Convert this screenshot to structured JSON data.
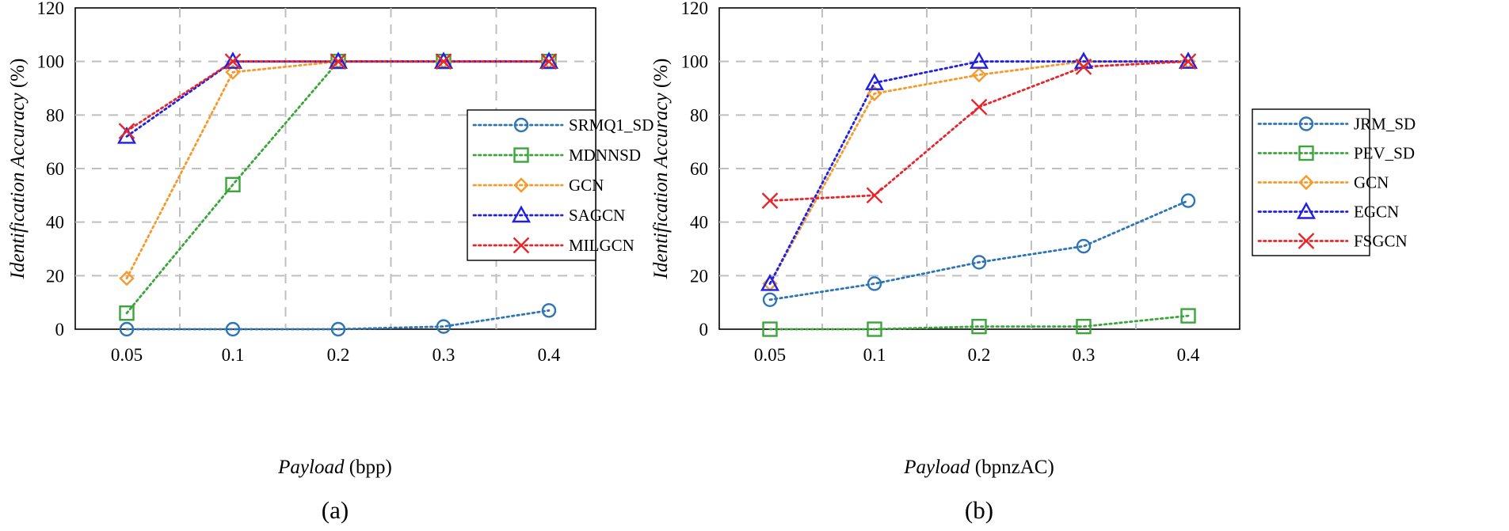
{
  "colors": {
    "blue": "#2E75B6",
    "green": "#3AA63A",
    "orange": "#F59A2B",
    "darkblue": "#1F1FE6",
    "red": "#E8252A",
    "grid": "#BFBFBF"
  },
  "chart_data": [
    {
      "type": "line",
      "subtitle": "(a)",
      "xlabel_italic": "Payload",
      "xlabel_unit": "(bpp)",
      "ylabel": "Identification Accuracy (%)",
      "categories": [
        "0.05",
        "0.1",
        "0.2",
        "0.3",
        "0.4"
      ],
      "ylim": [
        0,
        120
      ],
      "yticks": [
        "0",
        "20",
        "40",
        "60",
        "80",
        "100",
        "120"
      ],
      "grid": true,
      "legend_position": "right",
      "series": [
        {
          "name": "SRMQ1_SD",
          "marker": "circle",
          "color": "#2E75B6",
          "values": [
            0,
            0,
            0,
            1,
            7
          ]
        },
        {
          "name": "MDNNSD",
          "marker": "square",
          "color": "#3AA63A",
          "values": [
            6,
            54,
            100,
            100,
            100
          ]
        },
        {
          "name": "GCN",
          "marker": "diamond",
          "color": "#F59A2B",
          "values": [
            19,
            96,
            100,
            100,
            100
          ]
        },
        {
          "name": "SAGCN",
          "marker": "triangle",
          "color": "#1F1FE6",
          "values": [
            72,
            100,
            100,
            100,
            100
          ]
        },
        {
          "name": "MILGCN",
          "marker": "x",
          "color": "#E8252A",
          "values": [
            74,
            100,
            100,
            100,
            100
          ]
        }
      ]
    },
    {
      "type": "line",
      "subtitle": "(b)",
      "xlabel_italic": "Payload",
      "xlabel_unit": "(bpnzAC)",
      "ylabel": "Identification Accuracy (%)",
      "categories": [
        "0.05",
        "0.1",
        "0.2",
        "0.3",
        "0.4"
      ],
      "ylim": [
        0,
        120
      ],
      "yticks": [
        "0",
        "20",
        "40",
        "60",
        "80",
        "100",
        "120"
      ],
      "grid": true,
      "legend_position": "right",
      "series": [
        {
          "name": "JRM_SD",
          "marker": "circle",
          "color": "#2E75B6",
          "values": [
            11,
            17,
            25,
            31,
            48
          ]
        },
        {
          "name": "PEV_SD",
          "marker": "square",
          "color": "#3AA63A",
          "values": [
            0,
            0,
            1,
            1,
            5
          ]
        },
        {
          "name": "GCN",
          "marker": "diamond",
          "color": "#F59A2B",
          "values": [
            17,
            88,
            95,
            100,
            100
          ]
        },
        {
          "name": "EGCN",
          "marker": "triangle",
          "color": "#1F1FE6",
          "values": [
            17,
            92,
            100,
            100,
            100
          ]
        },
        {
          "name": "FSGCN",
          "marker": "x",
          "color": "#E8252A",
          "values": [
            48,
            50,
            83,
            98,
            100
          ]
        }
      ]
    }
  ]
}
